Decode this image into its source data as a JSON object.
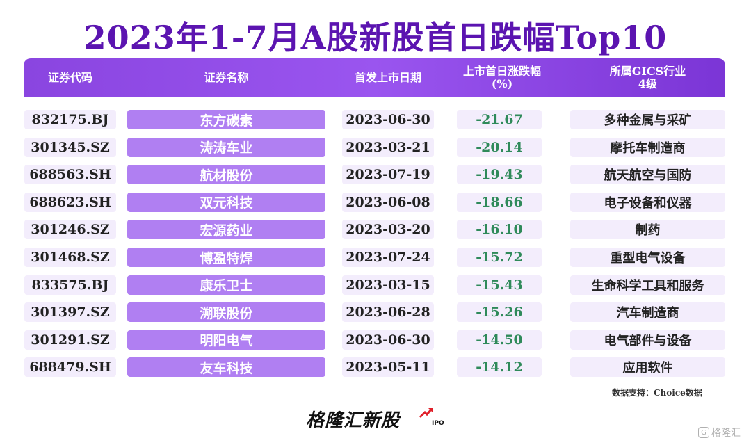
{
  "title": "2023年1-7月A股新股首日跌幅Top10",
  "columns": {
    "code": "证券代码",
    "name": "证券名称",
    "date": "首发上市日期",
    "change_line1": "上市首日涨跌幅",
    "change_line2": "(%)",
    "industry_line1": "所属GICS行业",
    "industry_line2": "4级"
  },
  "chart_data": {
    "type": "table",
    "title": "2023年1-7月A股新股首日跌幅Top10",
    "headers": [
      "证券代码",
      "证券名称",
      "首发上市日期",
      "上市首日涨跌幅(%)",
      "所属GICS行业4级"
    ],
    "rows": [
      {
        "code": "832175.BJ",
        "name": "东方碳素",
        "date": "2023-06-30",
        "change": "-21.67",
        "industry": "多种金属与采矿"
      },
      {
        "code": "301345.SZ",
        "name": "涛涛车业",
        "date": "2023-03-21",
        "change": "-20.14",
        "industry": "摩托车制造商"
      },
      {
        "code": "688563.SH",
        "name": "航材股份",
        "date": "2023-07-19",
        "change": "-19.43",
        "industry": "航天航空与国防"
      },
      {
        "code": "688623.SH",
        "name": "双元科技",
        "date": "2023-06-08",
        "change": "-18.66",
        "industry": "电子设备和仪器"
      },
      {
        "code": "301246.SZ",
        "name": "宏源药业",
        "date": "2023-03-20",
        "change": "-16.10",
        "industry": "制药"
      },
      {
        "code": "301468.SZ",
        "name": "博盈特焊",
        "date": "2023-07-24",
        "change": "-15.72",
        "industry": "重型电气设备"
      },
      {
        "code": "833575.BJ",
        "name": "康乐卫士",
        "date": "2023-03-15",
        "change": "-15.43",
        "industry": "生命科学工具和服务"
      },
      {
        "code": "301397.SZ",
        "name": "溯联股份",
        "date": "2023-06-28",
        "change": "-15.26",
        "industry": "汽车制造商"
      },
      {
        "code": "301291.SZ",
        "name": "明阳电气",
        "date": "2023-06-30",
        "change": "-14.50",
        "industry": "电气部件与设备"
      },
      {
        "code": "688479.SH",
        "name": "友车科技",
        "date": "2023-05-11",
        "change": "-14.12",
        "industry": "应用软件"
      }
    ]
  },
  "source": "数据支持：Choice数据",
  "logo": {
    "text": "格隆汇新股",
    "sub": "IPO"
  },
  "watermark": "格隆汇",
  "colors": {
    "title": "#5b14b0",
    "header": "#8a45e0",
    "name_pill": "#b07ff2",
    "cell_bg": "#f3edfc",
    "negative": "#2f8a5a"
  }
}
